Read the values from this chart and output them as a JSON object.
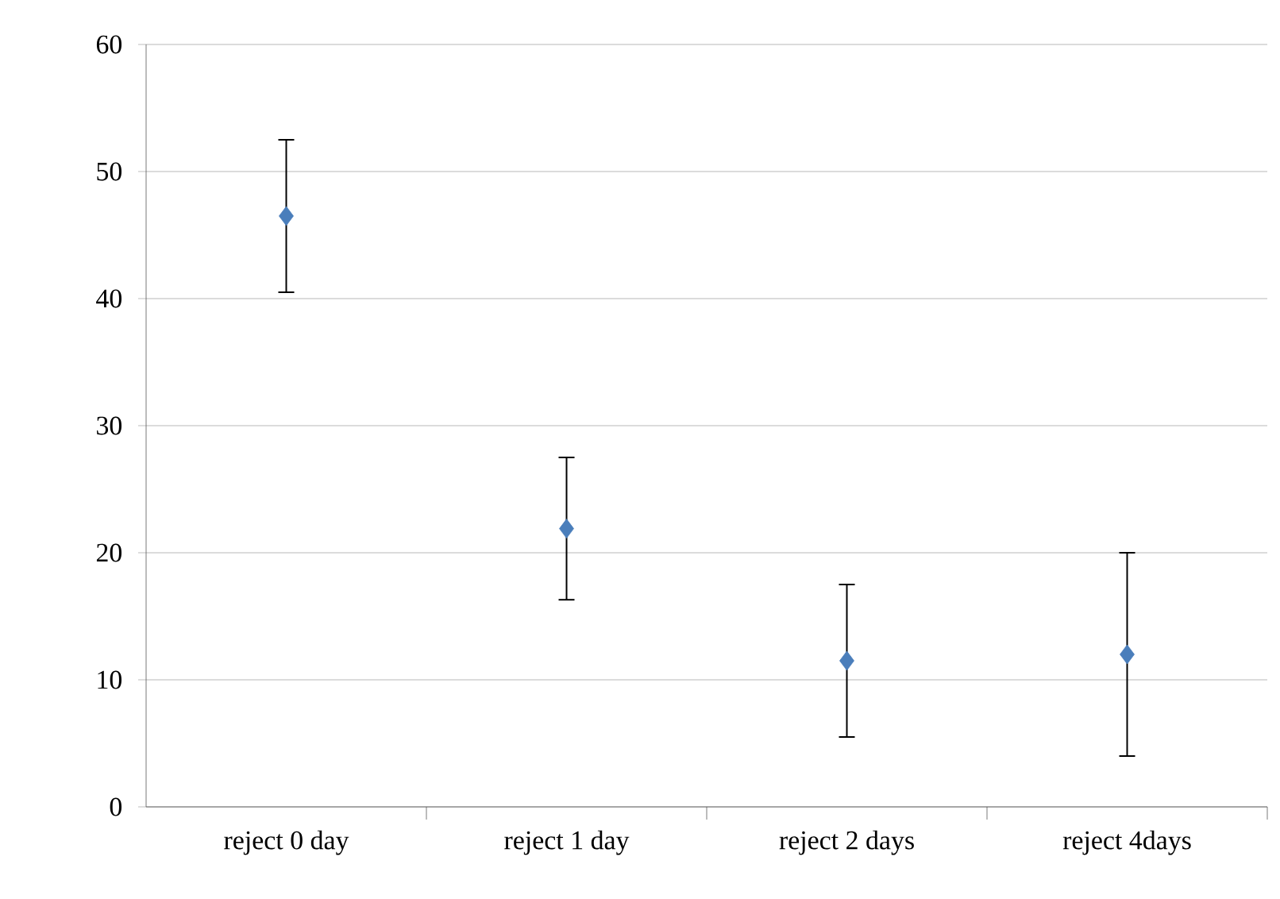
{
  "chart_data": {
    "type": "scatter",
    "categories": [
      "reject 0 day",
      "reject 1 day",
      "reject 2 days",
      "reject 4days"
    ],
    "values": [
      46.5,
      21.9,
      11.5,
      12
    ],
    "errors": [
      6,
      5.6,
      6,
      8
    ],
    "color": "#4a7ebb",
    "marker": "diamond",
    "ylim": [
      0,
      60
    ],
    "yticks": [
      0,
      10,
      20,
      30,
      40,
      50,
      60
    ],
    "grid": "y"
  }
}
